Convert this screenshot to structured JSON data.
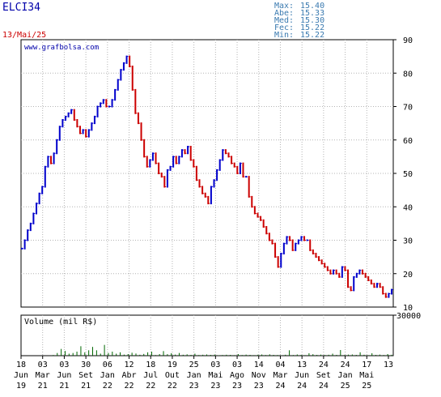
{
  "header": {
    "ticker": "ELCI34",
    "date": "13/Mai/25",
    "watermark": "www.grafbolsa.com",
    "volume_label": "Volume (mil R$)"
  },
  "stats": [
    {
      "label": "Max:",
      "value": "15.40"
    },
    {
      "label": "Abe:",
      "value": "15.33"
    },
    {
      "label": "Med:",
      "value": "15.30"
    },
    {
      "label": "Fec:",
      "value": "15.22"
    },
    {
      "label": "Min:",
      "value": "15.22"
    }
  ],
  "colors": {
    "price_up": "#0000cc",
    "price_down": "#cc0000",
    "volume": "#006600",
    "axis": "#000000",
    "grid": "#b4b4b4",
    "ticker": "#0000aa",
    "date": "#cc0000",
    "stats": "#3a7ab0"
  },
  "chart_data": [
    {
      "type": "line",
      "title": "ELCI34",
      "y_ticks": [
        10,
        20,
        30,
        40,
        50,
        60,
        70,
        80,
        90
      ],
      "ylim": [
        10,
        90
      ],
      "grid": true,
      "x_tick_labels": [
        {
          "top": "18",
          "bottom": "Jun",
          "year": "19"
        },
        {
          "top": "03",
          "bottom": "Mar",
          "year": "21"
        },
        {
          "top": "03",
          "bottom": "Jun",
          "year": "21"
        },
        {
          "top": "30",
          "bottom": "Set",
          "year": "21"
        },
        {
          "top": "06",
          "bottom": "Jan",
          "year": "22"
        },
        {
          "top": "12",
          "bottom": "Abr",
          "year": "22"
        },
        {
          "top": "18",
          "bottom": "Jul",
          "year": "22"
        },
        {
          "top": "19",
          "bottom": "Out",
          "year": "22"
        },
        {
          "top": "25",
          "bottom": "Jan",
          "year": "23"
        },
        {
          "top": "03",
          "bottom": "Mai",
          "year": "23"
        },
        {
          "top": "03",
          "bottom": "Ago",
          "year": "23"
        },
        {
          "top": "14",
          "bottom": "Nov",
          "year": "23"
        },
        {
          "top": "04",
          "bottom": "Mar",
          "year": "24"
        },
        {
          "top": "13",
          "bottom": "Jun",
          "year": "24"
        },
        {
          "top": "24",
          "bottom": "Set",
          "year": "24"
        },
        {
          "top": "24",
          "bottom": "Jan",
          "year": "25"
        },
        {
          "top": "17",
          "bottom": "Mai",
          "year": "25"
        },
        {
          "top": "13",
          "bottom": "",
          "year": ""
        }
      ],
      "series": [
        {
          "values": [
            27.5,
            30,
            33,
            35,
            38,
            41,
            44,
            46,
            52,
            55,
            53,
            56,
            60,
            64,
            66,
            67,
            68,
            69,
            66,
            64,
            62,
            63,
            61,
            63,
            65,
            67,
            70,
            71,
            72,
            70,
            70,
            72,
            75,
            78,
            81,
            83,
            85,
            82,
            75,
            68,
            65,
            60,
            55,
            52,
            54,
            56,
            53,
            50,
            49,
            46,
            51,
            52,
            55,
            53,
            55,
            57,
            56,
            58,
            54,
            52,
            48,
            46,
            44,
            43,
            41,
            46,
            48,
            51,
            54,
            57,
            56,
            55,
            53,
            52,
            50,
            53,
            49,
            49,
            43,
            40,
            38,
            37,
            36,
            34,
            32,
            30,
            29,
            25,
            22,
            26,
            29,
            31,
            30,
            27,
            29,
            30,
            31,
            30,
            30,
            27,
            26,
            25,
            24,
            23,
            22,
            21,
            20,
            21,
            20,
            19,
            22,
            21,
            16,
            15,
            19,
            20,
            21,
            20,
            19,
            18,
            17,
            16,
            17,
            16,
            14,
            13,
            14,
            15.2
          ]
        }
      ]
    },
    {
      "type": "bar",
      "title": "Volume (mil R$)",
      "y_ticks": [
        30000
      ],
      "ylim": [
        0,
        30000
      ],
      "values": [
        0,
        0,
        0,
        0,
        0,
        0,
        0,
        0,
        500,
        2000,
        5000,
        3500,
        1500,
        2000,
        3000,
        7000,
        2500,
        4000,
        6500,
        4000,
        1500,
        8000,
        2000,
        3000,
        1500,
        2500,
        800,
        1200,
        2200,
        1600,
        700,
        1300,
        2500,
        3000,
        500,
        1200,
        3400,
        1100,
        1800,
        800,
        2000,
        700,
        1000,
        600,
        1500,
        500,
        700,
        900,
        600,
        800,
        300,
        500,
        700,
        600,
        400,
        1200,
        500,
        800,
        600,
        400,
        700,
        900,
        500,
        1000,
        600,
        500,
        300,
        700,
        4000,
        500,
        900,
        600,
        400,
        1800,
        1100,
        600,
        800,
        500,
        700,
        1500,
        600,
        4200,
        500,
        800,
        900,
        600,
        2500,
        700,
        400,
        1800,
        600,
        800,
        500,
        1200,
        700
      ]
    }
  ]
}
